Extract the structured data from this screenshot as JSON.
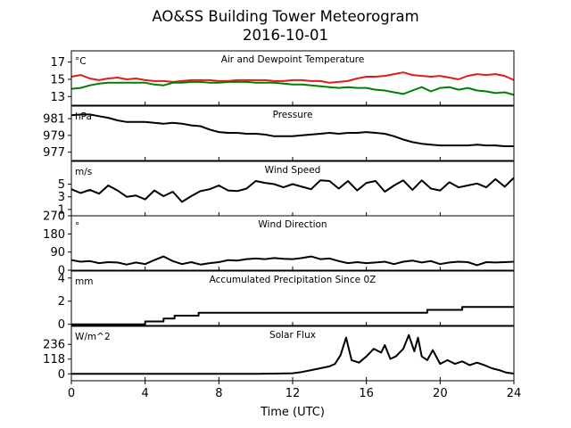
{
  "title": "AO&SS Building Tower Meteorogram",
  "subtitle": "2016-10-01",
  "chart_data": {
    "type": "line",
    "xlabel": "Time (UTC)",
    "xlim": [
      0,
      24
    ],
    "xticks": [
      0,
      4,
      8,
      12,
      16,
      20,
      24
    ],
    "panels": [
      {
        "id": "temp",
        "title": "Air and Dewpoint Temperature",
        "unit": "°C",
        "ylim": [
          12,
          18.3
        ],
        "yticks": [
          13,
          15,
          17
        ],
        "series": [
          {
            "color": "#e31a1c",
            "x": [
              0,
              0.5,
              1,
              1.5,
              2,
              2.5,
              3,
              3.5,
              4,
              4.5,
              5,
              5.5,
              6,
              6.5,
              7,
              7.5,
              8,
              8.5,
              9,
              9.5,
              10,
              10.5,
              11,
              11.5,
              12,
              12.5,
              13,
              13.5,
              14,
              14.5,
              15,
              15.5,
              16,
              16.5,
              17,
              17.5,
              18,
              18.5,
              19,
              19.5,
              20,
              20.5,
              21,
              21.5,
              22,
              22.5,
              23,
              23.5,
              24
            ],
            "y": [
              15.3,
              15.5,
              15.1,
              14.9,
              15.1,
              15.2,
              15.0,
              15.1,
              14.9,
              14.8,
              14.8,
              14.7,
              14.8,
              14.9,
              14.9,
              14.9,
              14.8,
              14.8,
              14.9,
              14.9,
              14.9,
              14.9,
              14.8,
              14.8,
              14.9,
              14.9,
              14.8,
              14.8,
              14.6,
              14.7,
              14.8,
              15.1,
              15.3,
              15.3,
              15.4,
              15.6,
              15.8,
              15.5,
              15.4,
              15.3,
              15.4,
              15.2,
              15.0,
              15.4,
              15.6,
              15.5,
              15.6,
              15.4,
              14.9
            ]
          },
          {
            "color": "#008000",
            "x": [
              0,
              0.5,
              1,
              1.5,
              2,
              2.5,
              3,
              3.5,
              4,
              4.5,
              5,
              5.5,
              6,
              6.5,
              7,
              7.5,
              8,
              8.5,
              9,
              9.5,
              10,
              10.5,
              11,
              11.5,
              12,
              12.5,
              13,
              13.5,
              14,
              14.5,
              15,
              15.5,
              16,
              16.5,
              17,
              17.5,
              18,
              18.5,
              19,
              19.5,
              20,
              20.5,
              21,
              21.5,
              22,
              22.5,
              23,
              23.5,
              24
            ],
            "y": [
              13.9,
              14.0,
              14.3,
              14.5,
              14.6,
              14.6,
              14.6,
              14.6,
              14.6,
              14.4,
              14.3,
              14.6,
              14.6,
              14.7,
              14.7,
              14.6,
              14.6,
              14.7,
              14.7,
              14.7,
              14.6,
              14.6,
              14.6,
              14.5,
              14.4,
              14.4,
              14.3,
              14.2,
              14.1,
              14.0,
              14.1,
              14.0,
              14.0,
              13.8,
              13.7,
              13.5,
              13.3,
              13.7,
              14.1,
              13.6,
              14.0,
              14.1,
              13.8,
              14.0,
              13.7,
              13.6,
              13.4,
              13.5,
              13.2
            ]
          }
        ]
      },
      {
        "id": "pressure",
        "title": "Pressure",
        "unit": "hPa",
        "ylim": [
          976,
          982.5
        ],
        "yticks": [
          977,
          979,
          981
        ],
        "series": [
          {
            "color": "#000000",
            "x": [
              0,
              0.5,
              1,
              1.5,
              2,
              2.5,
              3,
              3.5,
              4,
              4.5,
              5,
              5.5,
              6,
              6.5,
              7,
              7.5,
              8,
              8.5,
              9,
              9.5,
              10,
              10.5,
              11,
              11.5,
              12,
              12.5,
              13,
              13.5,
              14,
              14.5,
              15,
              15.5,
              16,
              16.5,
              17,
              17.5,
              18,
              18.5,
              19,
              19.5,
              20,
              20.5,
              21,
              21.5,
              22,
              22.5,
              23,
              23.5,
              24
            ],
            "y": [
              981.4,
              981.5,
              981.5,
              981.3,
              981.1,
              980.8,
              980.6,
              980.6,
              980.6,
              980.5,
              980.4,
              980.5,
              980.4,
              980.2,
              980.1,
              979.7,
              979.4,
              979.3,
              979.3,
              979.2,
              979.2,
              979.1,
              978.9,
              978.9,
              978.9,
              979.0,
              979.1,
              979.2,
              979.3,
              979.2,
              979.3,
              979.3,
              979.4,
              979.3,
              979.2,
              978.9,
              978.5,
              978.2,
              978.0,
              977.9,
              977.8,
              977.8,
              977.8,
              977.8,
              977.9,
              977.8,
              977.8,
              977.7,
              977.7
            ]
          }
        ]
      },
      {
        "id": "wspd",
        "title": "Wind Speed",
        "unit": "m/s",
        "ylim": [
          0,
          8.6
        ],
        "yticks": [
          1,
          3,
          5
        ],
        "series": [
          {
            "color": "#000000",
            "x": [
              0,
              0.5,
              1,
              1.5,
              2,
              2.5,
              3,
              3.5,
              4,
              4.5,
              5,
              5.5,
              6,
              6.5,
              7,
              7.5,
              8,
              8.5,
              9,
              9.5,
              10,
              10.5,
              11,
              11.5,
              12,
              12.5,
              13,
              13.5,
              14,
              14.5,
              15,
              15.5,
              16,
              16.5,
              17,
              17.5,
              18,
              18.5,
              19,
              19.5,
              20,
              20.5,
              21,
              21.5,
              22,
              22.5,
              23,
              23.5,
              24
            ],
            "y": [
              4.2,
              3.6,
              4.1,
              3.5,
              4.8,
              4.0,
              3.0,
              3.2,
              2.6,
              4.0,
              3.1,
              3.8,
              2.2,
              3.1,
              3.9,
              4.2,
              4.8,
              4.0,
              3.9,
              4.3,
              5.5,
              5.2,
              5.0,
              4.5,
              5.0,
              4.6,
              4.2,
              5.6,
              5.5,
              4.3,
              5.5,
              4.0,
              5.2,
              5.5,
              3.8,
              4.8,
              5.6,
              4.1,
              5.6,
              4.3,
              4.0,
              5.3,
              4.5,
              4.8,
              5.1,
              4.5,
              5.8,
              4.6,
              6.0
            ]
          }
        ]
      },
      {
        "id": "wdir",
        "title": "Wind Direction",
        "unit": "°",
        "ylim": [
          0,
          270
        ],
        "yticks": [
          0,
          90,
          180,
          270
        ],
        "series": [
          {
            "color": "#000000",
            "x": [
              0,
              0.5,
              1,
              1.5,
              2,
              2.5,
              3,
              3.5,
              4,
              4.5,
              5,
              5.5,
              6,
              6.5,
              7,
              7.5,
              8,
              8.5,
              9,
              9.5,
              10,
              10.5,
              11,
              11.5,
              12,
              12.5,
              13,
              13.5,
              14,
              14.5,
              15,
              15.5,
              16,
              16.5,
              17,
              17.5,
              18,
              18.5,
              19,
              19.5,
              20,
              20.5,
              21,
              21.5,
              22,
              22.5,
              23,
              23.5,
              24
            ],
            "y": [
              50,
              42,
              45,
              35,
              40,
              38,
              28,
              38,
              30,
              50,
              68,
              45,
              30,
              40,
              28,
              35,
              40,
              50,
              48,
              55,
              58,
              55,
              60,
              56,
              55,
              60,
              68,
              55,
              58,
              45,
              35,
              40,
              35,
              38,
              42,
              30,
              42,
              48,
              38,
              45,
              30,
              38,
              42,
              40,
              25,
              40,
              38,
              40,
              42
            ]
          }
        ]
      },
      {
        "id": "precip",
        "title": "Accumulated Precipitation Since 0Z",
        "unit": "mm",
        "ylim": [
          -0.1,
          4.6
        ],
        "yticks": [
          0,
          2,
          4
        ],
        "step": true,
        "series": [
          {
            "color": "#000000",
            "x": [
              0,
              4.0,
              4.0,
              5.0,
              5.0,
              5.6,
              5.6,
              6.9,
              6.9,
              19.3,
              19.3,
              21.2,
              21.2,
              24
            ],
            "y": [
              0,
              0,
              0.25,
              0.25,
              0.5,
              0.5,
              0.75,
              0.75,
              1.0,
              1.0,
              1.25,
              1.25,
              1.5,
              1.5
            ]
          }
        ]
      },
      {
        "id": "solar",
        "title": "Solar Flux",
        "unit": "W/m^2",
        "ylim": [
          -55,
          380
        ],
        "yticks": [
          0,
          118,
          236
        ],
        "series": [
          {
            "color": "#000000",
            "x": [
              0,
              6,
              10,
              11,
              12,
              12.5,
              13,
              13.5,
              14,
              14.3,
              14.6,
              14.9,
              15.2,
              15.6,
              16,
              16.4,
              16.8,
              17,
              17.3,
              17.6,
              18,
              18.3,
              18.6,
              18.8,
              19,
              19.3,
              19.6,
              20,
              20.4,
              20.8,
              21.2,
              21.6,
              22,
              22.4,
              22.8,
              23.2,
              23.6,
              24
            ],
            "y": [
              0,
              0,
              0,
              2,
              5,
              15,
              30,
              45,
              60,
              80,
              150,
              290,
              110,
              90,
              140,
              200,
              170,
              230,
              120,
              140,
              200,
              310,
              180,
              290,
              140,
              110,
              190,
              80,
              110,
              80,
              100,
              70,
              90,
              70,
              45,
              30,
              10,
              2
            ]
          }
        ]
      }
    ]
  }
}
